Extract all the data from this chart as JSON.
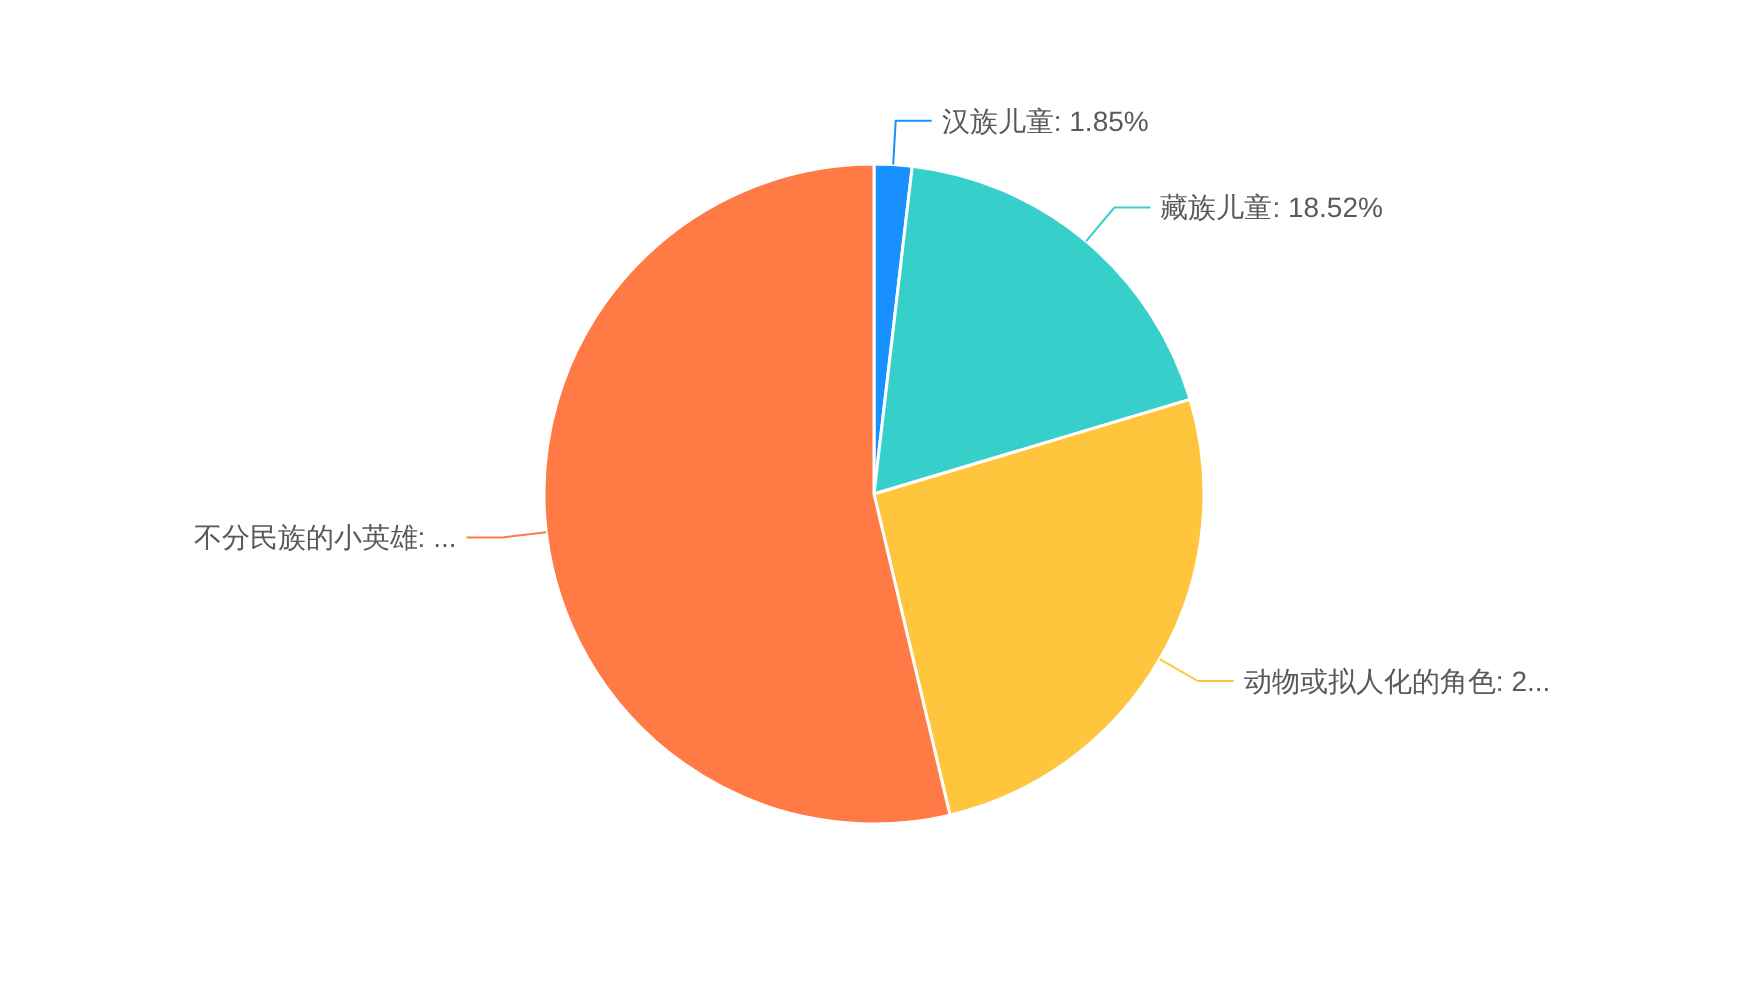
{
  "chart_data": {
    "type": "pie",
    "categories": [
      "汉族儿童",
      "藏族儿童",
      "动物或拟人化的角色",
      "不分民族的小英雄"
    ],
    "values": [
      1.85,
      18.52,
      25.93,
      53.7
    ],
    "value_labels": [
      "1.85%",
      "18.52%",
      "2...",
      "..."
    ],
    "colors": [
      "#1890ff",
      "#36cfc9",
      "#ffc53d",
      "#ff7a45"
    ]
  }
}
